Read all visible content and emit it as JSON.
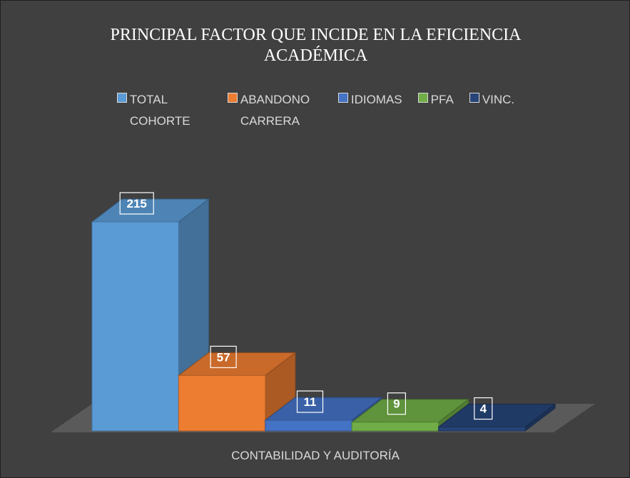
{
  "chart_data": {
    "type": "bar3d",
    "title": "PRINCIPAL FACTOR QUE INCIDE EN LA EFICIENCIA ACADÉMICA",
    "categories": [
      "CONTABILIDAD Y AUDITORÍA"
    ],
    "series": [
      {
        "name": "TOTAL COHORTE",
        "color": "#5b9bd5",
        "values": [
          215
        ]
      },
      {
        "name": "ABANDONO CARRERA",
        "color": "#ed7d31",
        "values": [
          57
        ]
      },
      {
        "name": "IDIOMAS",
        "color": "#4472c4",
        "values": [
          11
        ]
      },
      {
        "name": "PFA",
        "color": "#70ad47",
        "values": [
          9
        ]
      },
      {
        "name": "VINC.",
        "color": "#264478",
        "values": [
          4
        ]
      }
    ],
    "legend": "top"
  }
}
